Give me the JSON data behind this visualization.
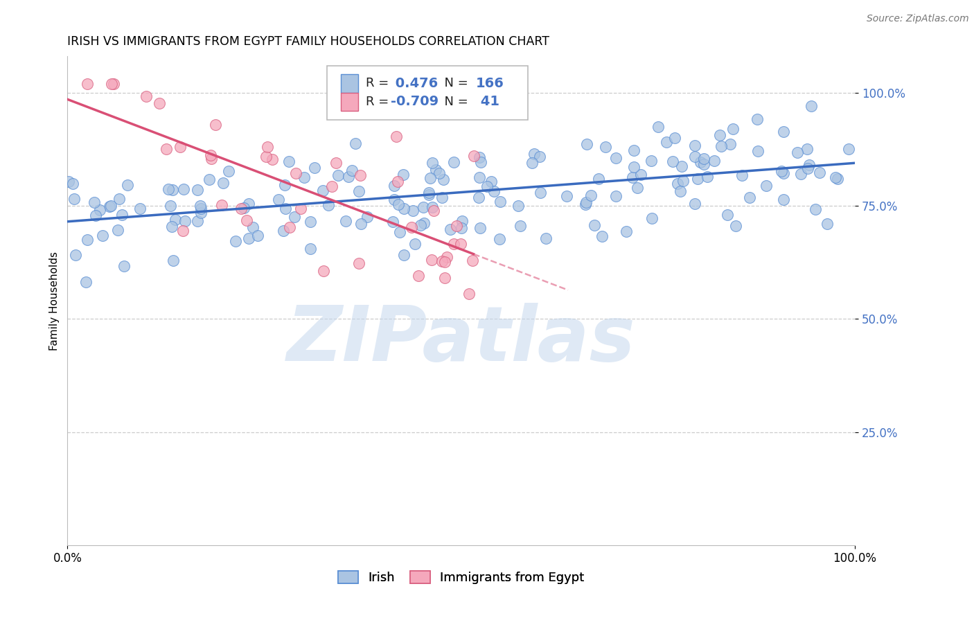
{
  "title": "IRISH VS IMMIGRANTS FROM EGYPT FAMILY HOUSEHOLDS CORRELATION CHART",
  "source": "Source: ZipAtlas.com",
  "ylabel": "Family Households",
  "xlim": [
    0.0,
    1.0
  ],
  "ylim": [
    0.0,
    1.08
  ],
  "yticks": [
    0.25,
    0.5,
    0.75,
    1.0
  ],
  "ytick_labels": [
    "25.0%",
    "50.0%",
    "75.0%",
    "100.0%"
  ],
  "xtick_labels": [
    "0.0%",
    "100.0%"
  ],
  "irish_R": 0.476,
  "irish_N": 166,
  "egypt_R": -0.709,
  "egypt_N": 41,
  "irish_color": "#aac4e2",
  "egypt_color": "#f5a8bc",
  "irish_edge_color": "#5b8fd4",
  "egypt_edge_color": "#d96080",
  "irish_line_color": "#3a6bbf",
  "egypt_line_color": "#d94f75",
  "axis_tick_color": "#4472c4",
  "watermark": "ZIPatlas",
  "watermark_color": "#c5d8ee",
  "background_color": "#ffffff",
  "grid_color": "#cccccc",
  "title_fontsize": 12.5,
  "source_fontsize": 10,
  "legend_fontsize": 13,
  "axis_label_fontsize": 11,
  "tick_fontsize": 12
}
